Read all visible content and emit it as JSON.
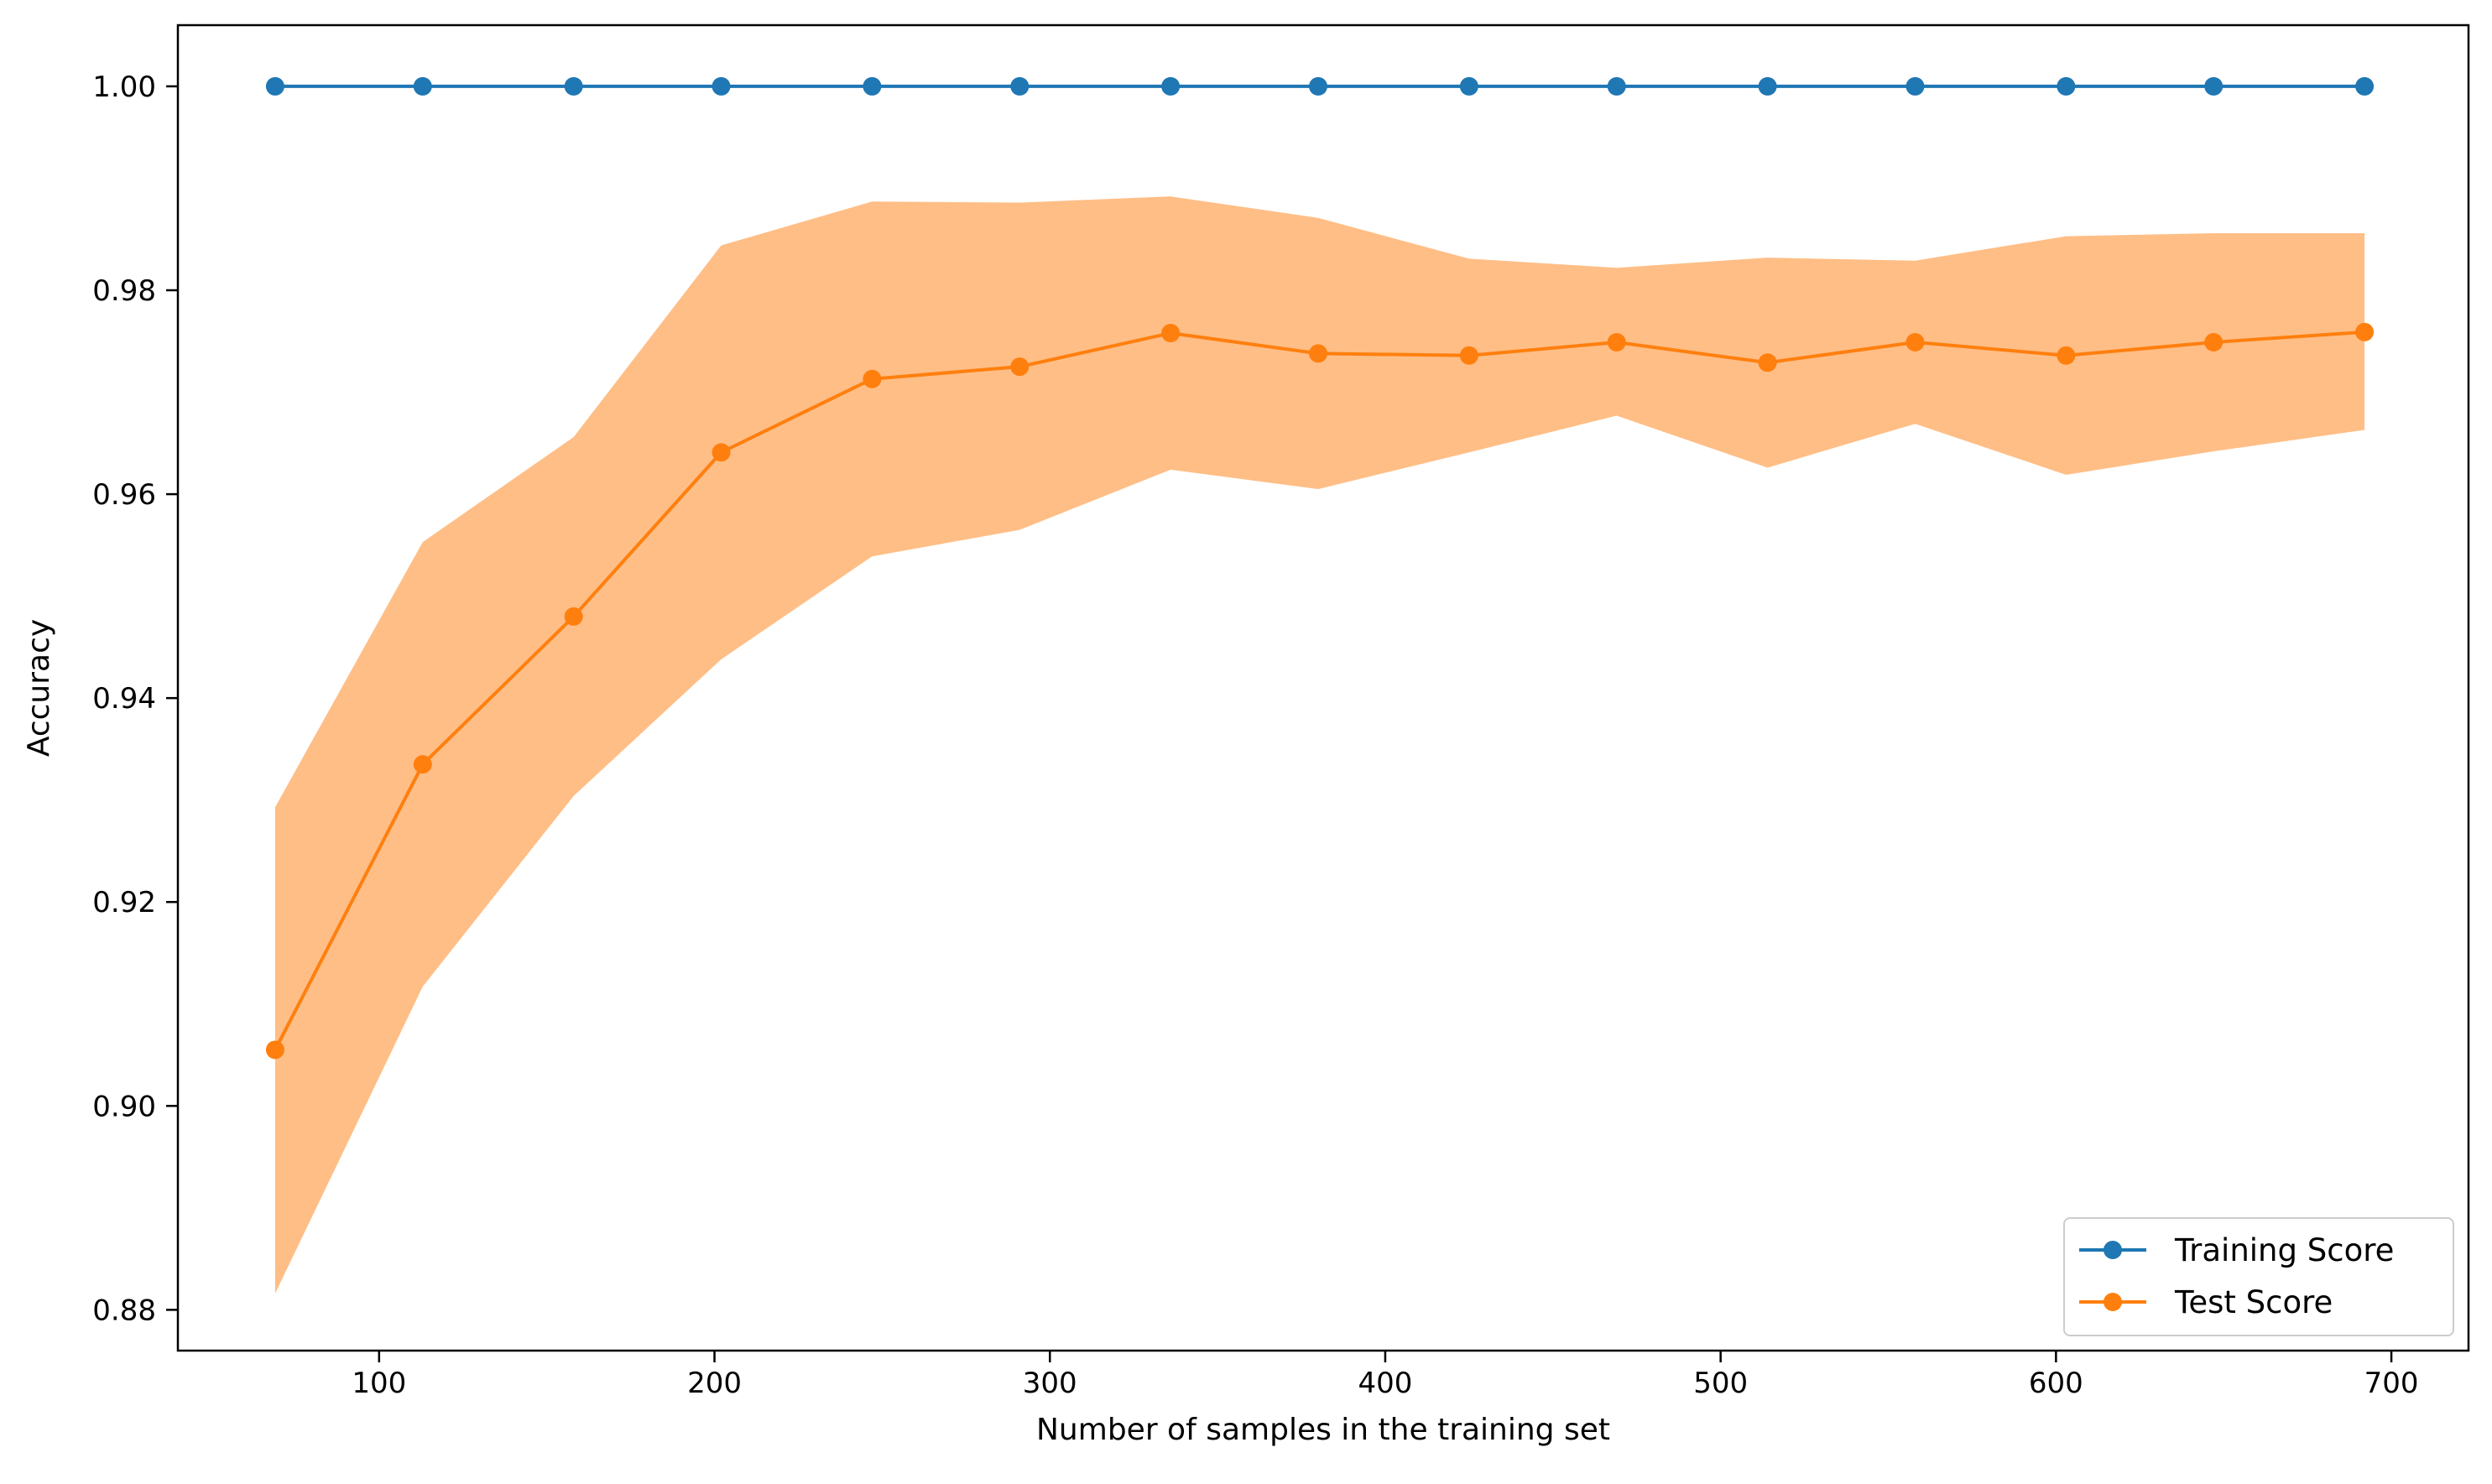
{
  "chart_data": {
    "type": "line",
    "title": "",
    "xlabel": "Number of samples in the training set",
    "ylabel": "Accuracy",
    "xlim": [
      40,
      723
    ],
    "ylim": [
      0.876,
      1.006
    ],
    "xticks": [
      100,
      200,
      300,
      400,
      500,
      600,
      700
    ],
    "xtick_labels": [
      "100",
      "200",
      "300",
      "400",
      "500",
      "600",
      "700"
    ],
    "yticks": [
      0.88,
      0.9,
      0.92,
      0.94,
      0.96,
      0.98,
      1.0
    ],
    "ytick_labels": [
      "0.88",
      "0.90",
      "0.92",
      "0.94",
      "0.96",
      "0.98",
      "1.00"
    ],
    "grid": false,
    "legend_position": "lower-right",
    "x": [
      69,
      113,
      158,
      202,
      247,
      291,
      336,
      380,
      425,
      469,
      514,
      558,
      603,
      647,
      692
    ],
    "series": [
      {
        "name": "Training Score",
        "color": "#1f77b4",
        "marker": "circle",
        "values": [
          1.0,
          1.0,
          1.0,
          1.0,
          1.0,
          1.0,
          1.0,
          1.0,
          1.0,
          1.0,
          1.0,
          1.0,
          1.0,
          1.0,
          1.0
        ]
      },
      {
        "name": "Test Score",
        "color": "#ff7f0e",
        "marker": "circle",
        "values": [
          0.9055,
          0.9335,
          0.948,
          0.9641,
          0.9713,
          0.9725,
          0.9758,
          0.9738,
          0.9736,
          0.9749,
          0.9729,
          0.9749,
          0.9736,
          0.9749,
          0.9759
        ],
        "band_color": "#ffbe86",
        "band_upper": [
          0.9293,
          0.9553,
          0.9656,
          0.9844,
          0.9887,
          0.9886,
          0.9892,
          0.9871,
          0.9831,
          0.9822,
          0.9832,
          0.9829,
          0.9853,
          0.9856,
          0.9856
        ],
        "band_lower": [
          0.8816,
          0.9117,
          0.9304,
          0.9438,
          0.9539,
          0.9565,
          0.9624,
          0.9605,
          0.9641,
          0.9677,
          0.9626,
          0.9669,
          0.9619,
          0.9642,
          0.9663
        ]
      }
    ]
  }
}
